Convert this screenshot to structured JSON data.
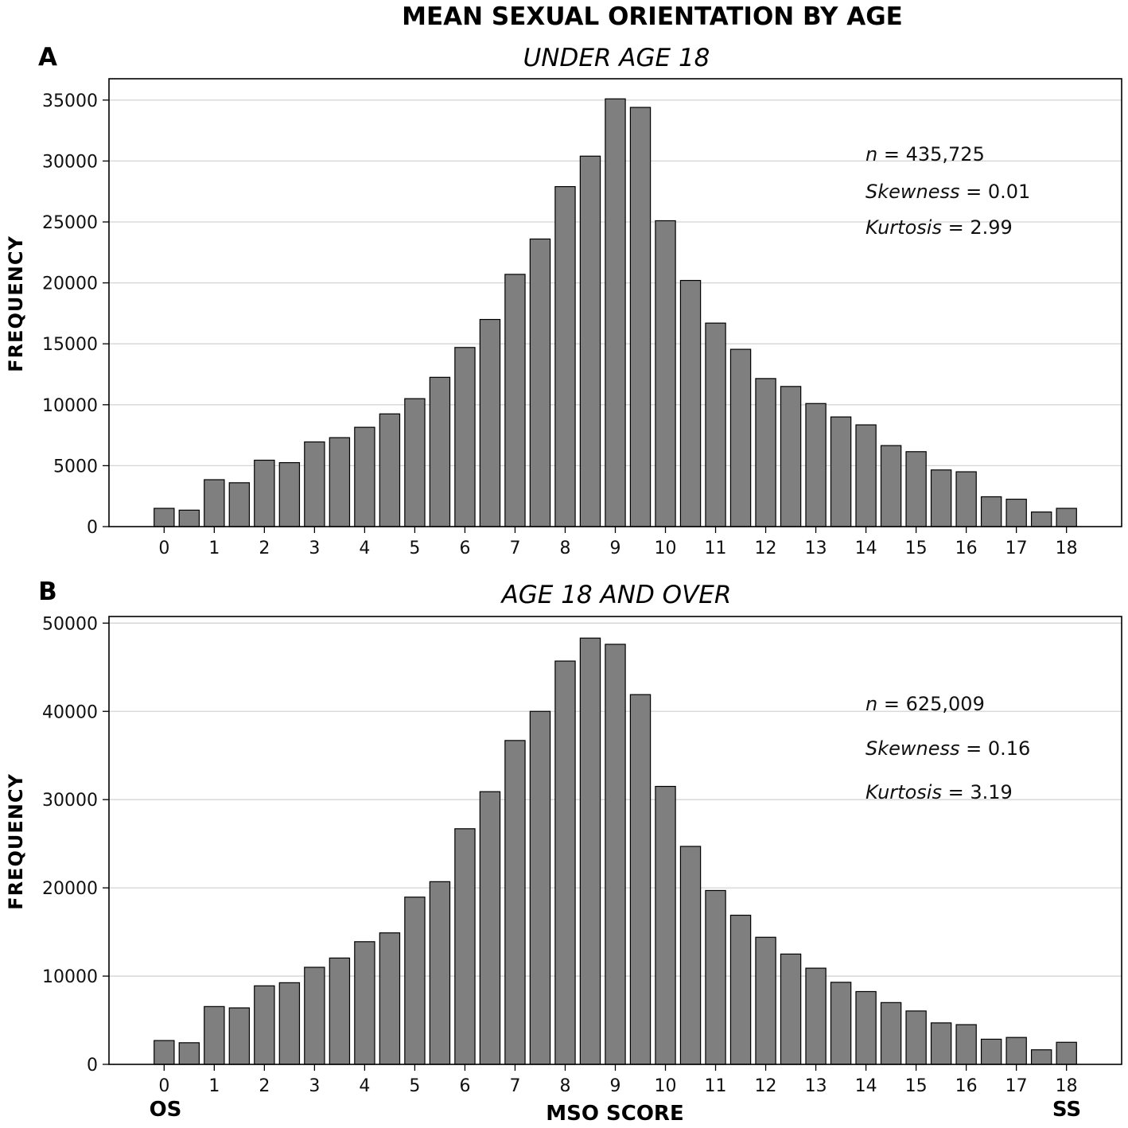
{
  "figure": {
    "title": "MEAN SEXUAL ORIENTATION BY AGE",
    "xlabel": "MSO SCORE",
    "x_left_end_label": "OS",
    "x_right_end_label": "SS"
  },
  "chart_data": [
    {
      "type": "bar",
      "panel": "A",
      "title": "UNDER AGE 18",
      "ylabel": "FREQUENCY",
      "xlabel": "",
      "x": [
        0,
        0.5,
        1,
        1.5,
        2,
        2.5,
        3,
        3.5,
        4,
        4.5,
        5,
        5.5,
        6,
        6.5,
        7,
        7.5,
        8,
        8.5,
        9,
        9.5,
        10,
        10.5,
        11,
        11.5,
        12,
        12.5,
        13,
        13.5,
        14,
        14.5,
        15,
        15.5,
        16,
        16.5,
        17,
        17.5,
        18
      ],
      "values": [
        1500,
        1350,
        3850,
        3600,
        5450,
        5250,
        6950,
        7300,
        8150,
        9250,
        10500,
        12250,
        14700,
        17000,
        20700,
        23600,
        27900,
        30400,
        35100,
        34400,
        25100,
        20200,
        16700,
        14550,
        12150,
        11500,
        10100,
        9000,
        8350,
        6650,
        6150,
        4650,
        4500,
        2450,
        2250,
        1200,
        1500
      ],
      "xticks": [
        0,
        1,
        2,
        3,
        4,
        5,
        6,
        7,
        8,
        9,
        10,
        11,
        12,
        13,
        14,
        15,
        16,
        17,
        18
      ],
      "yticks": [
        0,
        5000,
        10000,
        15000,
        20000,
        25000,
        30000,
        35000
      ],
      "ylim": [
        0,
        36750
      ],
      "xlim": [
        -1.1,
        19.1
      ],
      "grid": "horizontal",
      "annotations": {
        "n_label": "n",
        "n_value": " = 435,725",
        "skew_label": "Skewness",
        "skew_value": " = 0.01",
        "kurt_label": "Kurtosis",
        "kurt_value": " = 2.99"
      }
    },
    {
      "type": "bar",
      "panel": "B",
      "title": "AGE 18 AND OVER",
      "ylabel": "FREQUENCY",
      "xlabel": "MSO SCORE",
      "x": [
        0,
        0.5,
        1,
        1.5,
        2,
        2.5,
        3,
        3.5,
        4,
        4.5,
        5,
        5.5,
        6,
        6.5,
        7,
        7.5,
        8,
        8.5,
        9,
        9.5,
        10,
        10.5,
        11,
        11.5,
        12,
        12.5,
        13,
        13.5,
        14,
        14.5,
        15,
        15.5,
        16,
        16.5,
        17,
        17.5,
        18
      ],
      "values": [
        2700,
        2450,
        6550,
        6400,
        8900,
        9250,
        11000,
        12050,
        13900,
        14900,
        18950,
        20700,
        26700,
        30900,
        36700,
        40000,
        45700,
        48300,
        47600,
        41900,
        31500,
        24700,
        19700,
        16900,
        14400,
        12500,
        10900,
        9300,
        8250,
        7000,
        6050,
        4700,
        4500,
        2850,
        3050,
        1650,
        2500
      ],
      "xticks": [
        0,
        1,
        2,
        3,
        4,
        5,
        6,
        7,
        8,
        9,
        10,
        11,
        12,
        13,
        14,
        15,
        16,
        17,
        18
      ],
      "yticks": [
        0,
        10000,
        20000,
        30000,
        40000,
        50000
      ],
      "ylim": [
        0,
        50750
      ],
      "xlim": [
        -1.1,
        19.1
      ],
      "grid": "horizontal",
      "annotations": {
        "n_label": "n",
        "n_value": " = 625,009",
        "skew_label": "Skewness",
        "skew_value": " = 0.16",
        "kurt_label": "Kurtosis",
        "kurt_value": " = 3.19"
      }
    }
  ]
}
